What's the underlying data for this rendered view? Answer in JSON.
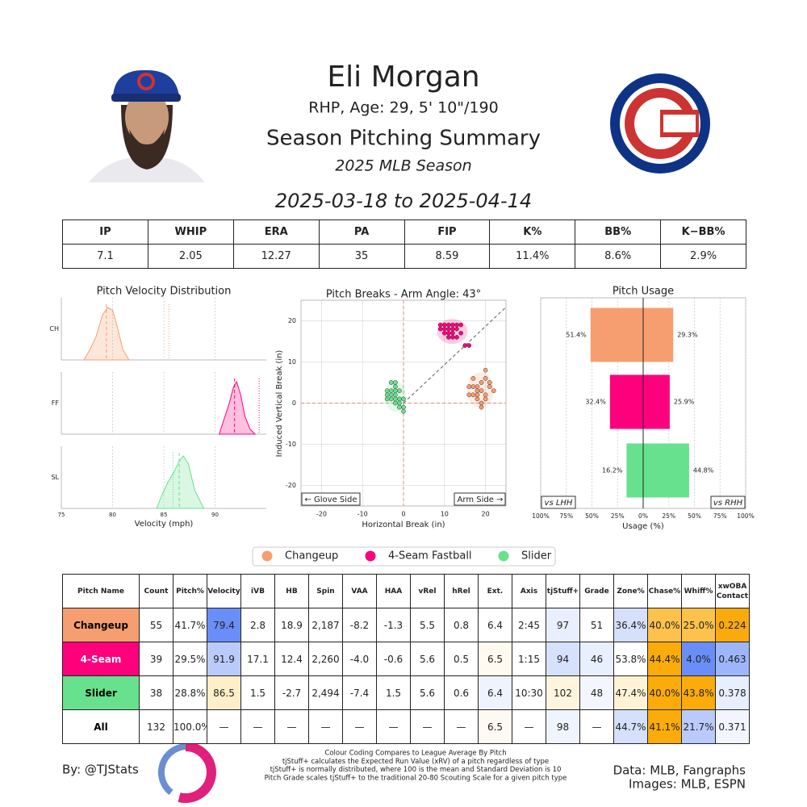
{
  "header": {
    "name": "Eli Morgan",
    "bio": "RHP, Age: 29, 5' 10\"/190",
    "subtitle": "Season Pitching Summary",
    "season": "2025 MLB Season",
    "date_range": "2025-03-18 to 2025-04-14"
  },
  "stats_table": {
    "columns": [
      "IP",
      "WHIP",
      "ERA",
      "PA",
      "FIP",
      "K%",
      "BB%",
      "K−BB%"
    ],
    "values": [
      "7.1",
      "2.05",
      "12.27",
      "35",
      "8.59",
      "11.4%",
      "8.6%",
      "2.9%"
    ]
  },
  "chart_data": [
    {
      "type": "ridge",
      "title": "Pitch Velocity Distribution",
      "xlabel": "Velocity (mph)",
      "xlim": [
        75,
        95
      ],
      "xticks": [
        75,
        80,
        85,
        90
      ],
      "grid": true,
      "categories": [
        "CH",
        "FF",
        "SL"
      ],
      "series": [
        {
          "color": "#F79E70",
          "x": [
            77.2,
            77.8,
            78.4,
            79.0,
            79.5,
            80.0,
            80.5,
            81.0,
            81.6
          ],
          "values": [
            0,
            0.2,
            0.45,
            0.85,
            1.0,
            0.95,
            0.6,
            0.2,
            0
          ],
          "mean": 79.4,
          "league_mean": 85.5
        },
        {
          "color": "#FF007D",
          "x": [
            90.4,
            90.9,
            91.4,
            91.8,
            92.1,
            92.5,
            92.9,
            93.4,
            93.9
          ],
          "values": [
            0,
            0.3,
            0.6,
            0.9,
            1.0,
            0.75,
            0.35,
            0.1,
            0
          ],
          "mean": 91.9,
          "league_mean": 94.3
        },
        {
          "color": "#67E18D",
          "x": [
            84.3,
            84.8,
            85.4,
            86.0,
            86.5,
            86.9,
            87.4,
            88.0,
            88.9
          ],
          "values": [
            0,
            0.25,
            0.5,
            0.7,
            0.9,
            1.0,
            0.85,
            0.35,
            0
          ],
          "mean": 86.5,
          "league_mean": 85.9
        }
      ]
    },
    {
      "type": "scatter",
      "title": "Pitch Breaks - Arm Angle: 43°",
      "arm_angle": 43,
      "xlabel": "Horizontal Break (in)",
      "ylabel": "Induced Vertical Break (in)",
      "xlim": [
        -25,
        25
      ],
      "ylim": [
        -25,
        25
      ],
      "xticks": [
        -20,
        -10,
        0,
        10,
        20
      ],
      "yticks": [
        -20,
        -10,
        0,
        10,
        20
      ],
      "grid": true,
      "annotations": [
        "← Glove Side",
        "Arm Side →"
      ],
      "series": [
        {
          "name": "Changeup",
          "color": "#F79E70",
          "x": [
            16,
            17,
            18,
            19,
            20,
            18,
            17,
            19,
            20,
            21,
            19,
            18,
            20,
            16,
            21,
            19,
            17,
            20,
            18,
            22
          ],
          "y": [
            2,
            4,
            3,
            5,
            6,
            1,
            2,
            3,
            2,
            4,
            0,
            4,
            8,
            4,
            5,
            -1,
            6,
            1,
            2,
            3
          ]
        },
        {
          "name": "4-Seam Fastball",
          "color": "#FF007D",
          "x": [
            9,
            10,
            11,
            12,
            13,
            12,
            11,
            14,
            13,
            10,
            12,
            15,
            11,
            13,
            9,
            14,
            12,
            10,
            16,
            11
          ],
          "y": [
            19,
            18,
            17,
            18,
            16,
            19,
            19,
            17,
            18,
            17,
            16,
            14,
            16,
            19,
            18,
            19,
            17,
            19,
            14,
            18
          ]
        },
        {
          "name": "Slider",
          "color": "#67E18D",
          "x": [
            -3,
            -2,
            -1,
            -4,
            -2,
            -3,
            -1,
            -2,
            0,
            -3,
            -2,
            -1,
            -4,
            0,
            -1,
            -3,
            -2,
            0,
            -4,
            -2
          ],
          "y": [
            3,
            2,
            1,
            2,
            4,
            1,
            3,
            0,
            -1,
            5,
            3,
            0,
            3,
            1,
            -1,
            2,
            1,
            -2,
            1,
            5
          ]
        }
      ]
    },
    {
      "type": "diverging_bar",
      "title": "Pitch Usage",
      "xlabel": "Usage (%)",
      "xlim": [
        -100,
        100
      ],
      "grid": true,
      "xticks": [
        {
          "value": -100,
          "label": "100%"
        },
        {
          "value": -75,
          "label": "75%"
        },
        {
          "value": -50,
          "label": "50%"
        },
        {
          "value": -25,
          "label": "25%"
        },
        {
          "value": 0,
          "label": "0%"
        },
        {
          "value": 25,
          "label": "25%"
        },
        {
          "value": 50,
          "label": "50%"
        },
        {
          "value": 75,
          "label": "75%"
        },
        {
          "value": 100,
          "label": "100%"
        }
      ],
      "colors": [
        "#F79E70",
        "#FF007D",
        "#67E18D"
      ],
      "series": [
        {
          "name": "vs LHH",
          "side": "left",
          "values": [
            51.4,
            32.4,
            16.2
          ],
          "value_labels": [
            "51.4%",
            "32.4%",
            "16.2%"
          ]
        },
        {
          "name": "vs RHH",
          "side": "right",
          "values": [
            29.3,
            25.9,
            44.8
          ],
          "value_labels": [
            "29.3%",
            "25.9%",
            "44.8%"
          ]
        }
      ]
    }
  ],
  "pitch_table": {
    "columns": [
      "Pitch Name",
      "Count",
      "Pitch%",
      "Velocity",
      "iVB",
      "HB",
      "Spin",
      "VAA",
      "HAA",
      "vRel",
      "hRel",
      "Ext.",
      "Axis",
      "tjStuff+",
      "Grade",
      "Zone%",
      "Chase%",
      "Whiff%",
      "xwOBA Contact"
    ],
    "rows": [
      {
        "cells": [
          "Changeup",
          "55",
          "41.7%",
          "79.4",
          "2.8",
          "18.9",
          "2,187",
          "-8.2",
          "-1.3",
          "5.5",
          "0.8",
          "6.4",
          "2:45",
          "97",
          "51",
          "36.4%",
          "40.0%",
          "25.0%",
          "0.224"
        ],
        "fills": [
          "#F79E70",
          null,
          null,
          "#6A8EF7",
          null,
          null,
          null,
          null,
          null,
          null,
          null,
          null,
          null,
          "#E8EFFF",
          null,
          "#D5E0FB",
          "#FCC24C",
          "#FCC24C",
          "#FBAA0E"
        ],
        "name_text_color": "#000000"
      },
      {
        "cells": [
          "4-Seam",
          "39",
          "29.5%",
          "91.9",
          "17.1",
          "12.4",
          "2,260",
          "-4.0",
          "-0.6",
          "5.6",
          "0.5",
          "6.5",
          "1:15",
          "94",
          "46",
          "53.8%",
          "44.4%",
          "4.0%",
          "0.463"
        ],
        "fills": [
          "#FF007D",
          null,
          null,
          "#BACBFB",
          null,
          null,
          null,
          null,
          null,
          null,
          null,
          "#FEFAF0",
          null,
          "#D6E1FC",
          "#E8EFFF",
          null,
          "#FBAB0A",
          "#6A8EF7",
          "#9DB6FB"
        ],
        "name_text_color": "#ffffff"
      },
      {
        "cells": [
          "Slider",
          "38",
          "28.8%",
          "86.5",
          "1.5",
          "-2.7",
          "2,494",
          "-7.4",
          "1.5",
          "5.6",
          "0.6",
          "6.4",
          "10:30",
          "102",
          "48",
          "47.4%",
          "40.0%",
          "43.8%",
          "0.378"
        ],
        "fills": [
          "#67E18D",
          null,
          null,
          "#FEEFC8",
          null,
          null,
          null,
          null,
          null,
          null,
          null,
          "#EEF3FF",
          null,
          "#FFF5DE",
          "#F3F6FF",
          "#FFF3D6",
          "#FBAB0A",
          "#FBAB0A",
          "#E7EEFE"
        ],
        "name_text_color": "#000000"
      },
      {
        "cells": [
          "All",
          "132",
          "100.0%",
          "—",
          "—",
          "—",
          "—",
          "—",
          "—",
          "—",
          "—",
          "6.5",
          "—",
          "98",
          "—",
          "44.7%",
          "41.1%",
          "21.7%",
          "0.371"
        ],
        "fills": [
          null,
          null,
          null,
          null,
          null,
          null,
          null,
          null,
          null,
          null,
          null,
          "#FEFAF2",
          null,
          "#F0F4FF",
          null,
          "#D5E0FB",
          "#FBAB0A",
          "#BACBFB",
          "#F2F5FE"
        ],
        "name_text_color": "#000000"
      }
    ]
  },
  "footer": {
    "credit": "By: @TJStats",
    "notes": [
      "Colour Coding Compares to League Average By Pitch",
      "tjStuff+ calculates the Expected Run Value (xRV) of a pitch regardless of type",
      "tjStuff+ is normally distributed, where 100 is the mean and Standard Deviation is 10",
      "Pitch Grade scales tjStuff+ to the traditional 20-80 Scouting Scale for a given pitch type"
    ],
    "sources": [
      "Data: MLB, Fangraphs",
      "Images: MLB, ESPN"
    ]
  }
}
